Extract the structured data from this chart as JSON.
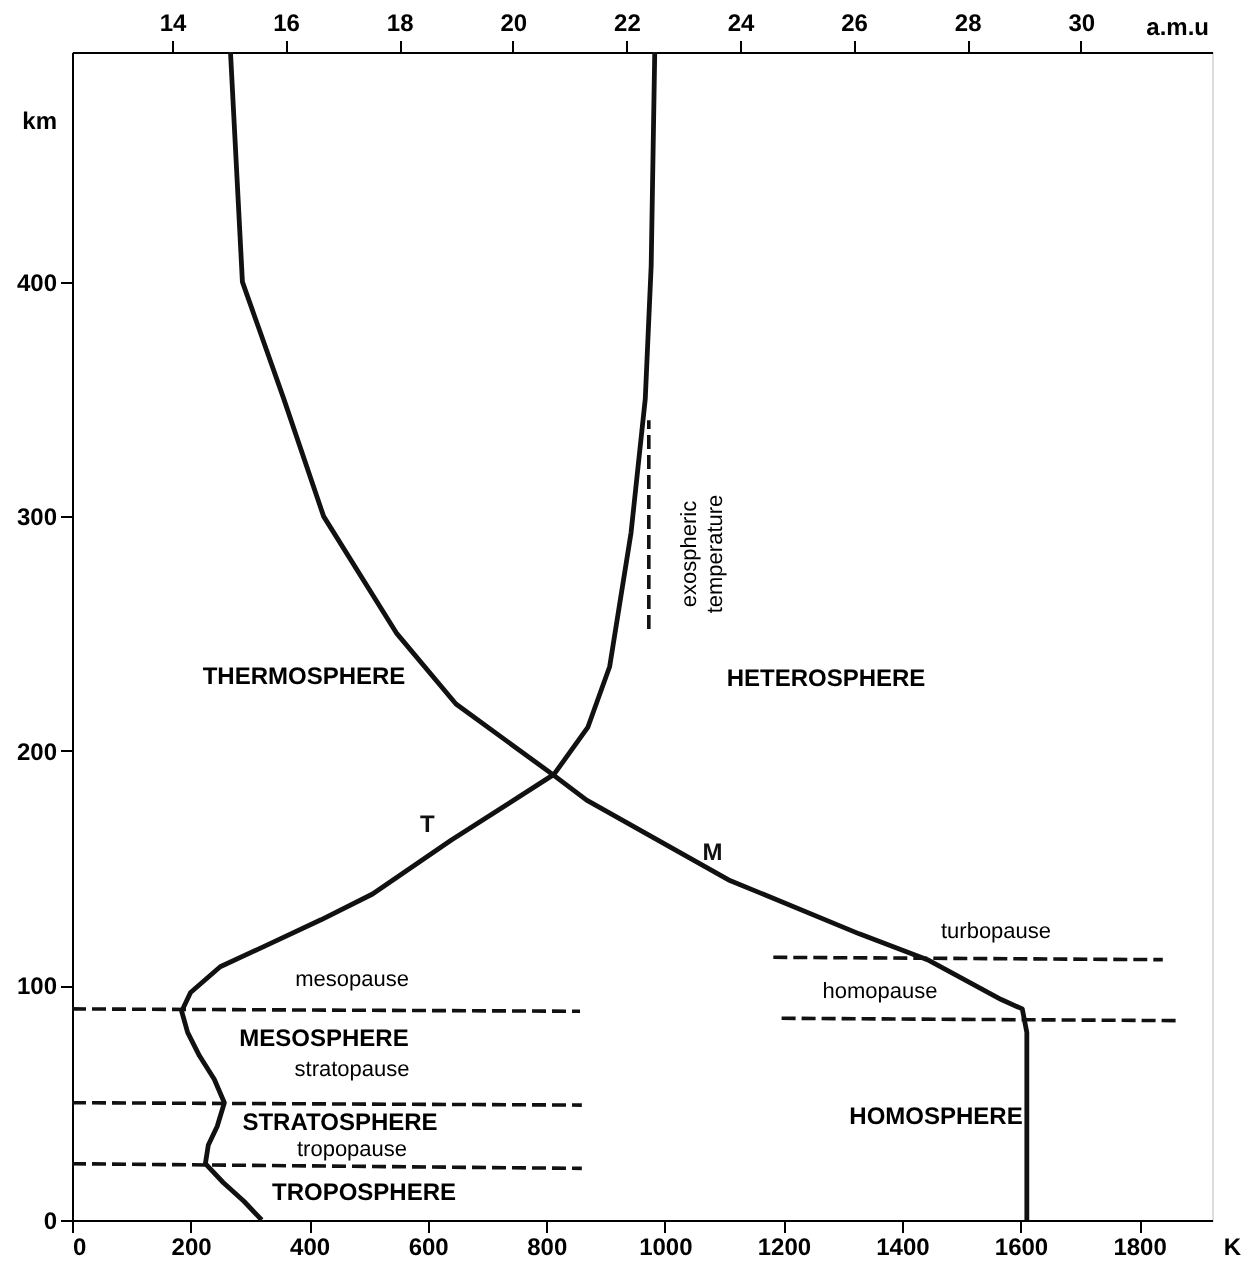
{
  "chart_data": {
    "type": "line",
    "xlabel": "K",
    "ylabel": "km",
    "x2label": "a.m.u",
    "xlim": [
      0,
      1923
    ],
    "xticks": [
      0,
      200,
      400,
      600,
      800,
      1000,
      1200,
      1400,
      1600,
      1800
    ],
    "x2lim": [
      12.24,
      32.31
    ],
    "x2ticks": [
      14,
      16,
      18,
      20,
      22,
      24,
      26,
      28,
      30
    ],
    "ylim": [
      0,
      498
    ],
    "yticks": [
      0,
      100,
      200,
      300,
      400
    ],
    "grid": false,
    "marker": "none",
    "line_style": "solid",
    "series": [
      {
        "name": "T",
        "color": "#111111",
        "x": [
          320,
          290,
          255,
          225,
          230,
          245,
          257,
          240,
          215,
          195,
          185,
          200,
          250,
          327,
          420,
          507,
          640,
          813,
          870,
          907,
          943,
          967,
          977,
          983
        ],
        "values": [
          0,
          8,
          16,
          24,
          32,
          40,
          50,
          60,
          70,
          80,
          89,
          97,
          108,
          117,
          128,
          139,
          162,
          190,
          210,
          236,
          293,
          350,
          407,
          498
        ]
      },
      {
        "name": "M",
        "color": "#111111",
        "axis": "x2",
        "x": [
          29.05,
          29.05,
          28.97,
          28.6,
          27.3,
          26.1,
          23.8,
          21.3,
          20.7,
          19.0,
          17.96,
          16.67,
          15.97,
          15.24,
          15.03
        ],
        "values": [
          0,
          80,
          90,
          94,
          111,
          122,
          145,
          179,
          190,
          220,
          250,
          300,
          350,
          400,
          498
        ]
      },
      {
        "color": "#111111",
        "line_style": "dashed",
        "x": [
          0,
          857
        ],
        "values": [
          90,
          89
        ]
      },
      {
        "color": "#111111",
        "line_style": "dashed",
        "x": [
          0,
          860
        ],
        "values": [
          50,
          49
        ]
      },
      {
        "color": "#111111",
        "line_style": "dashed",
        "x": [
          0,
          860
        ],
        "values": [
          24,
          22
        ]
      },
      {
        "color": "#111111",
        "line_style": "dashed",
        "x": [
          1197,
          1863
        ],
        "values": [
          86,
          85
        ]
      },
      {
        "color": "#111111",
        "line_style": "dashed",
        "x": [
          1183,
          1840
        ],
        "values": [
          112,
          111
        ]
      },
      {
        "color": "#111111",
        "line_style": "dashed",
        "x": [
          973,
          973
        ],
        "values": [
          252,
          341
        ]
      }
    ],
    "annotations": [
      "exospheric temperature",
      "THERMOSPHERE",
      "HETEROSPHERE",
      "turbopause",
      "mesopause",
      "homopause",
      "MESOSPHERE",
      "stratopause",
      "STRATOSPHERE",
      "HOMOSPHERE",
      "tropopause",
      "TROPOSPHERE"
    ]
  }
}
